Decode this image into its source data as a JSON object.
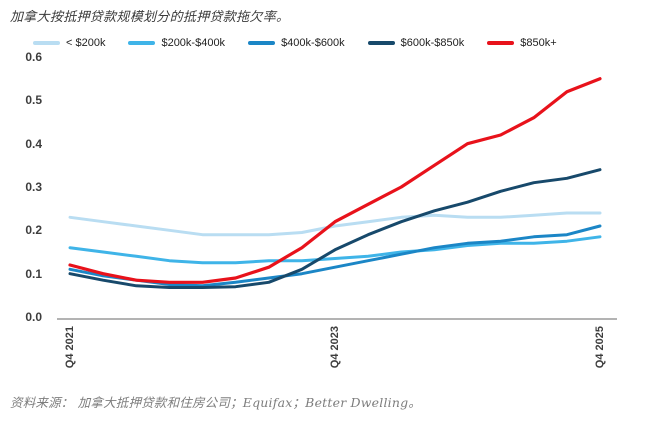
{
  "title": "加拿大按抵押贷款规模划分的抵押贷款拖欠率。",
  "source": "资料来源： 加拿大抵押贷款和住房公司；Equifax；Better Dwelling。",
  "legend": {
    "items": [
      {
        "label": "< $200k",
        "color": "#b9ddf2"
      },
      {
        "label": "$200k-$400k",
        "color": "#3fb4e8"
      },
      {
        "label": "$400k-$600k",
        "color": "#1b86c6"
      },
      {
        "label": "$600k-$850k",
        "color": "#17496b"
      },
      {
        "label": "$850k+",
        "color": "#e8121b"
      }
    ]
  },
  "chart_data": {
    "type": "line",
    "title": "加拿大按抵押贷款规模划分的抵押贷款拖欠率。",
    "x_label": "",
    "y_label": "",
    "y_ticks": [
      "0.6",
      "0.5",
      "0.4",
      "0.3",
      "0.2",
      "0.1",
      "0.0"
    ],
    "ylim": [
      0,
      0.6
    ],
    "grid": false,
    "legend_position": "top",
    "num_points": 17,
    "x_ticks": [
      {
        "label": "Q4 2021",
        "index": 0
      },
      {
        "label": "Q4 2023",
        "index": 8
      },
      {
        "label": "Q4 2025",
        "index": 16
      }
    ],
    "series": [
      {
        "name": "< $200k",
        "color": "#b9ddf2",
        "values": [
          0.23,
          0.22,
          0.21,
          0.2,
          0.19,
          0.19,
          0.19,
          0.195,
          0.21,
          0.22,
          0.23,
          0.235,
          0.23,
          0.23,
          0.235,
          0.24,
          0.24
        ]
      },
      {
        "name": "$200k-$400k",
        "color": "#3fb4e8",
        "values": [
          0.16,
          0.15,
          0.14,
          0.13,
          0.125,
          0.125,
          0.13,
          0.13,
          0.135,
          0.14,
          0.15,
          0.155,
          0.165,
          0.17,
          0.17,
          0.175,
          0.185
        ]
      },
      {
        "name": "$400k-$600k",
        "color": "#1b86c6",
        "values": [
          0.11,
          0.095,
          0.085,
          0.075,
          0.072,
          0.08,
          0.09,
          0.1,
          0.115,
          0.13,
          0.145,
          0.16,
          0.17,
          0.175,
          0.185,
          0.19,
          0.21
        ]
      },
      {
        "name": "$600k-$850k",
        "color": "#17496b",
        "values": [
          0.1,
          0.085,
          0.072,
          0.068,
          0.068,
          0.07,
          0.08,
          0.11,
          0.155,
          0.19,
          0.22,
          0.245,
          0.265,
          0.29,
          0.31,
          0.32,
          0.34
        ]
      },
      {
        "name": "$850k+",
        "color": "#e8121b",
        "values": [
          0.12,
          0.1,
          0.085,
          0.08,
          0.08,
          0.09,
          0.115,
          0.16,
          0.22,
          0.26,
          0.3,
          0.35,
          0.4,
          0.42,
          0.46,
          0.52,
          0.55
        ]
      }
    ]
  },
  "style": {
    "axis_line_color": "#b3b3b3",
    "tick_text_color": "#3d3d3d"
  }
}
